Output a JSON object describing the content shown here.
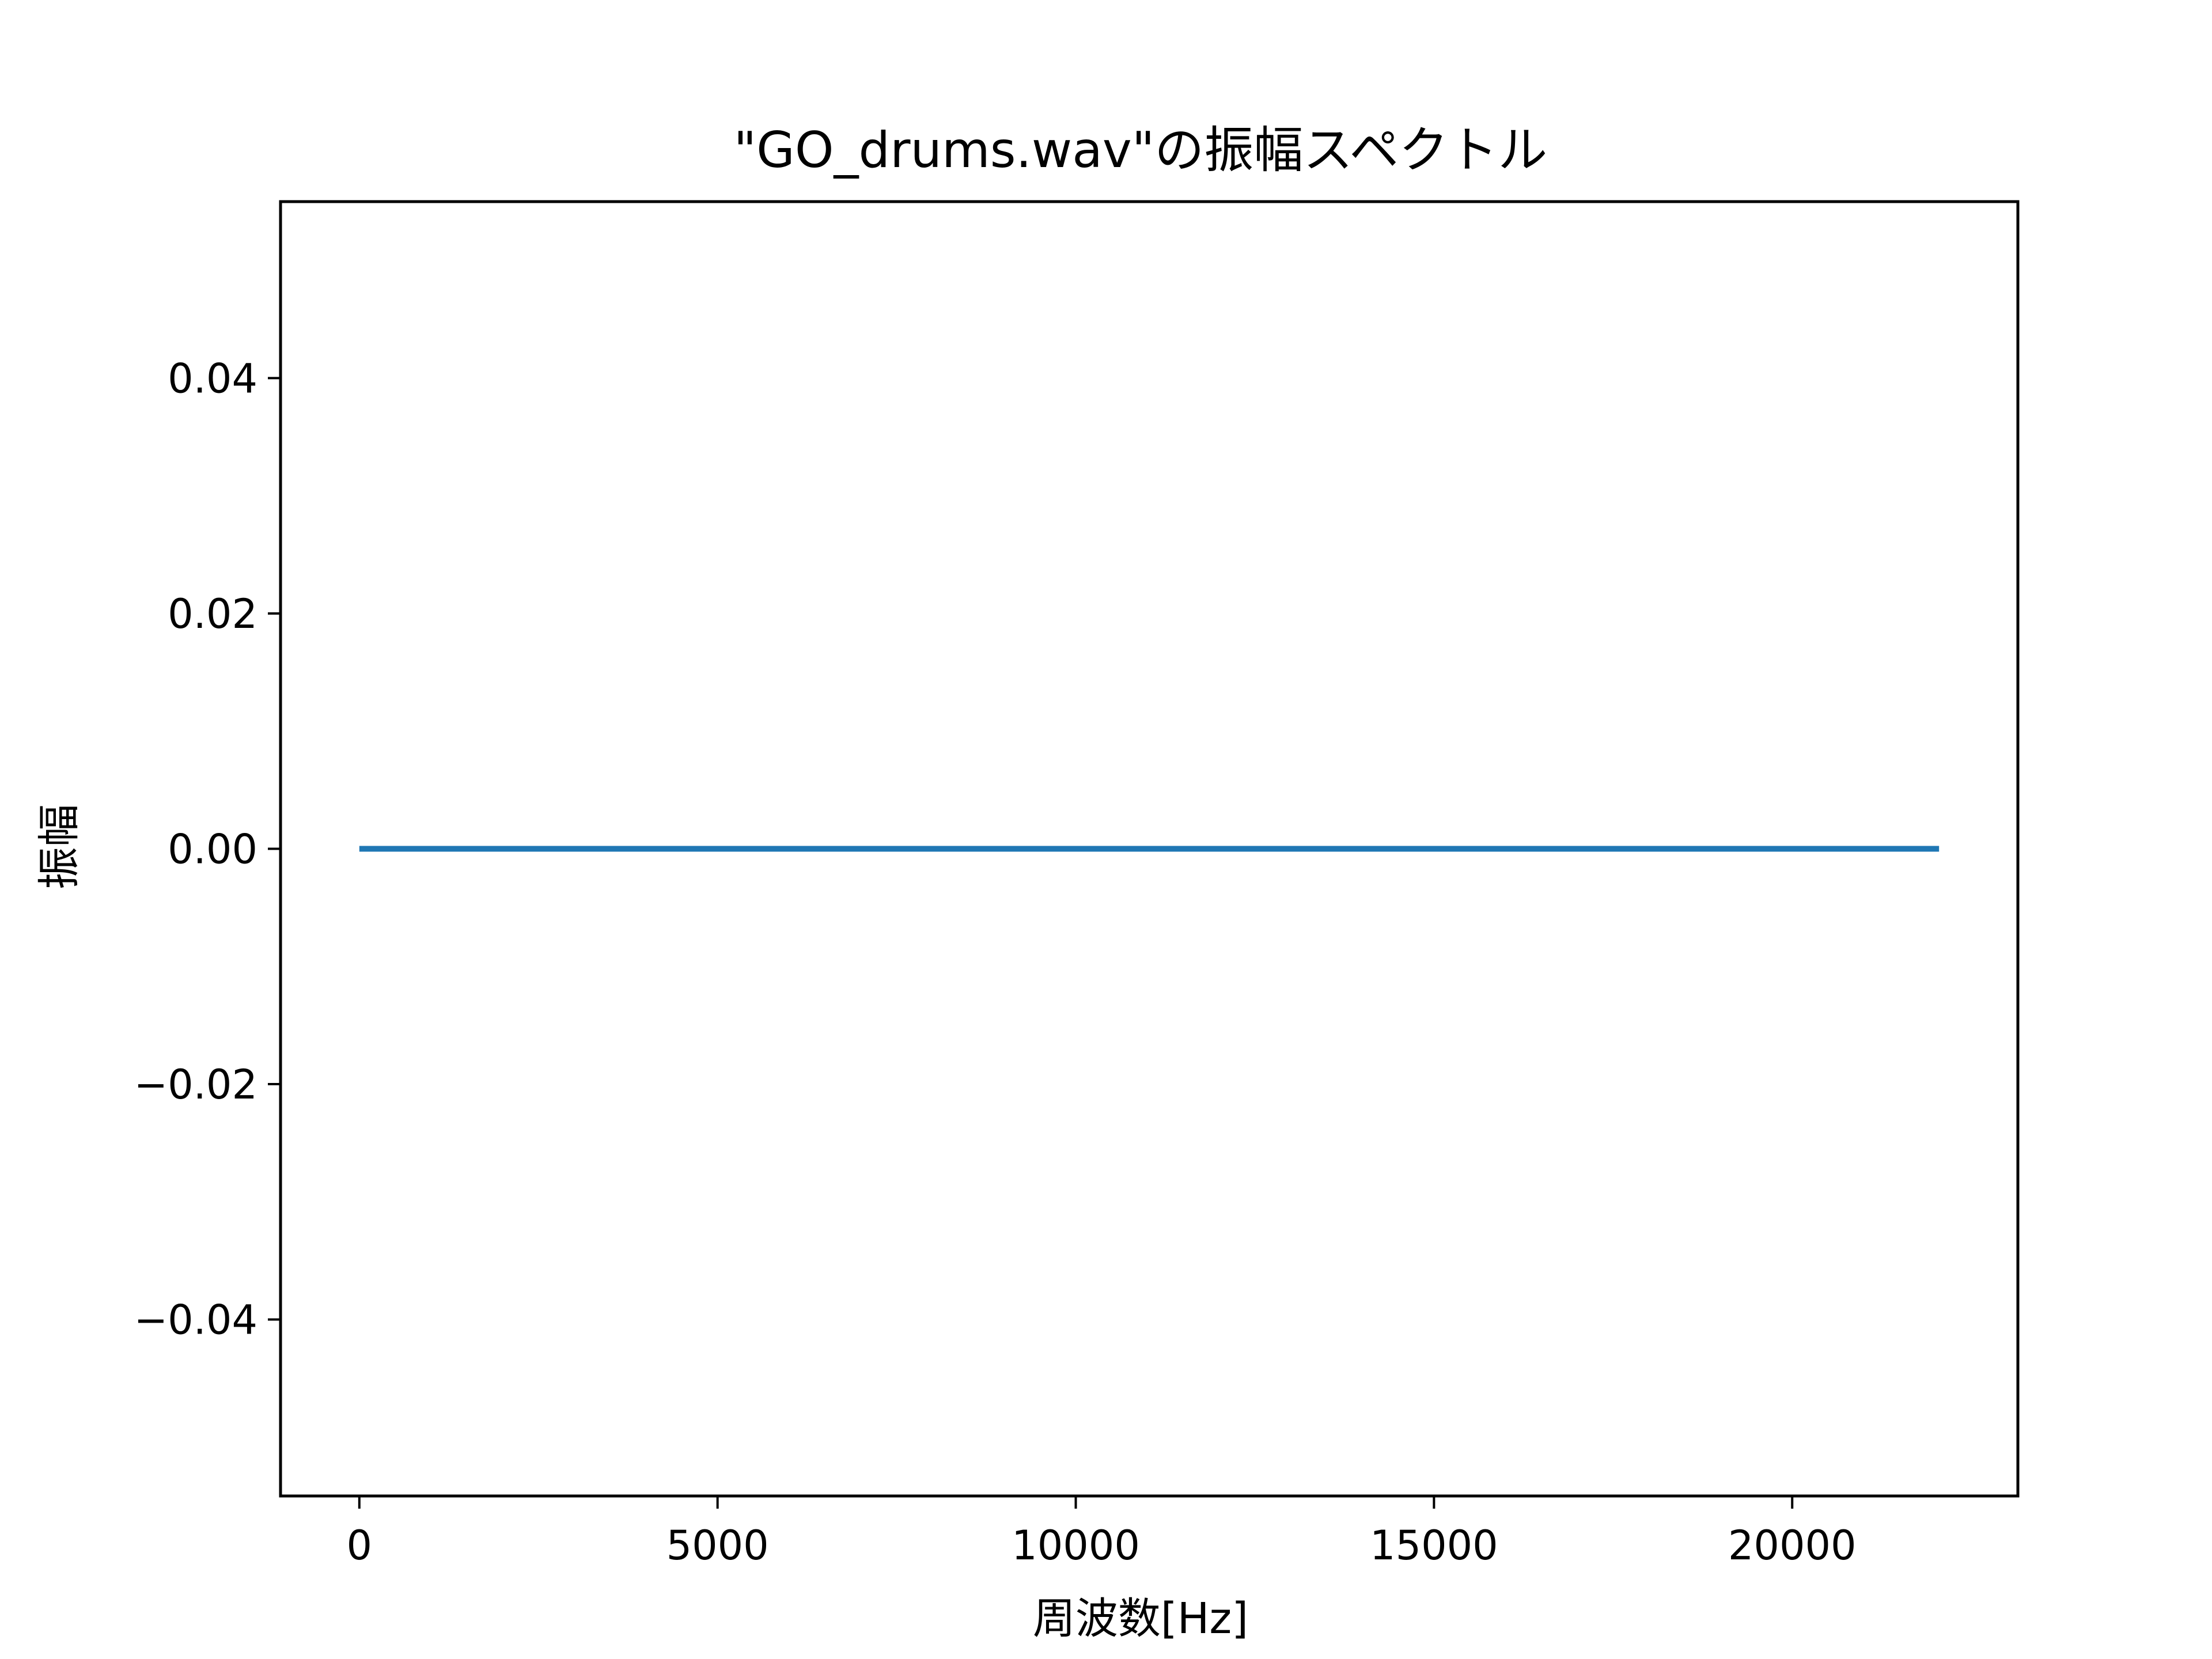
{
  "chart_data": {
    "type": "line",
    "title": "\"GO_drums.wav\"の振幅スペクトル",
    "xlabel": "周波数[Hz]",
    "ylabel": "振幅",
    "xlim": [
      -1100,
      23150
    ],
    "ylim": [
      -0.055,
      0.055
    ],
    "xticks": [
      0,
      5000,
      10000,
      15000,
      20000
    ],
    "xtick_labels": [
      "0",
      "5000",
      "10000",
      "15000",
      "20000"
    ],
    "yticks": [
      0.04,
      0.02,
      0.0,
      -0.02,
      -0.04
    ],
    "ytick_labels": [
      "0.04",
      "0.02",
      "0.00",
      "−0.02",
      "−0.04"
    ],
    "grid": false,
    "series": [
      {
        "x": [
          0,
          22050
        ],
        "y": [
          0,
          0
        ],
        "color": "#1f77b4"
      }
    ]
  }
}
